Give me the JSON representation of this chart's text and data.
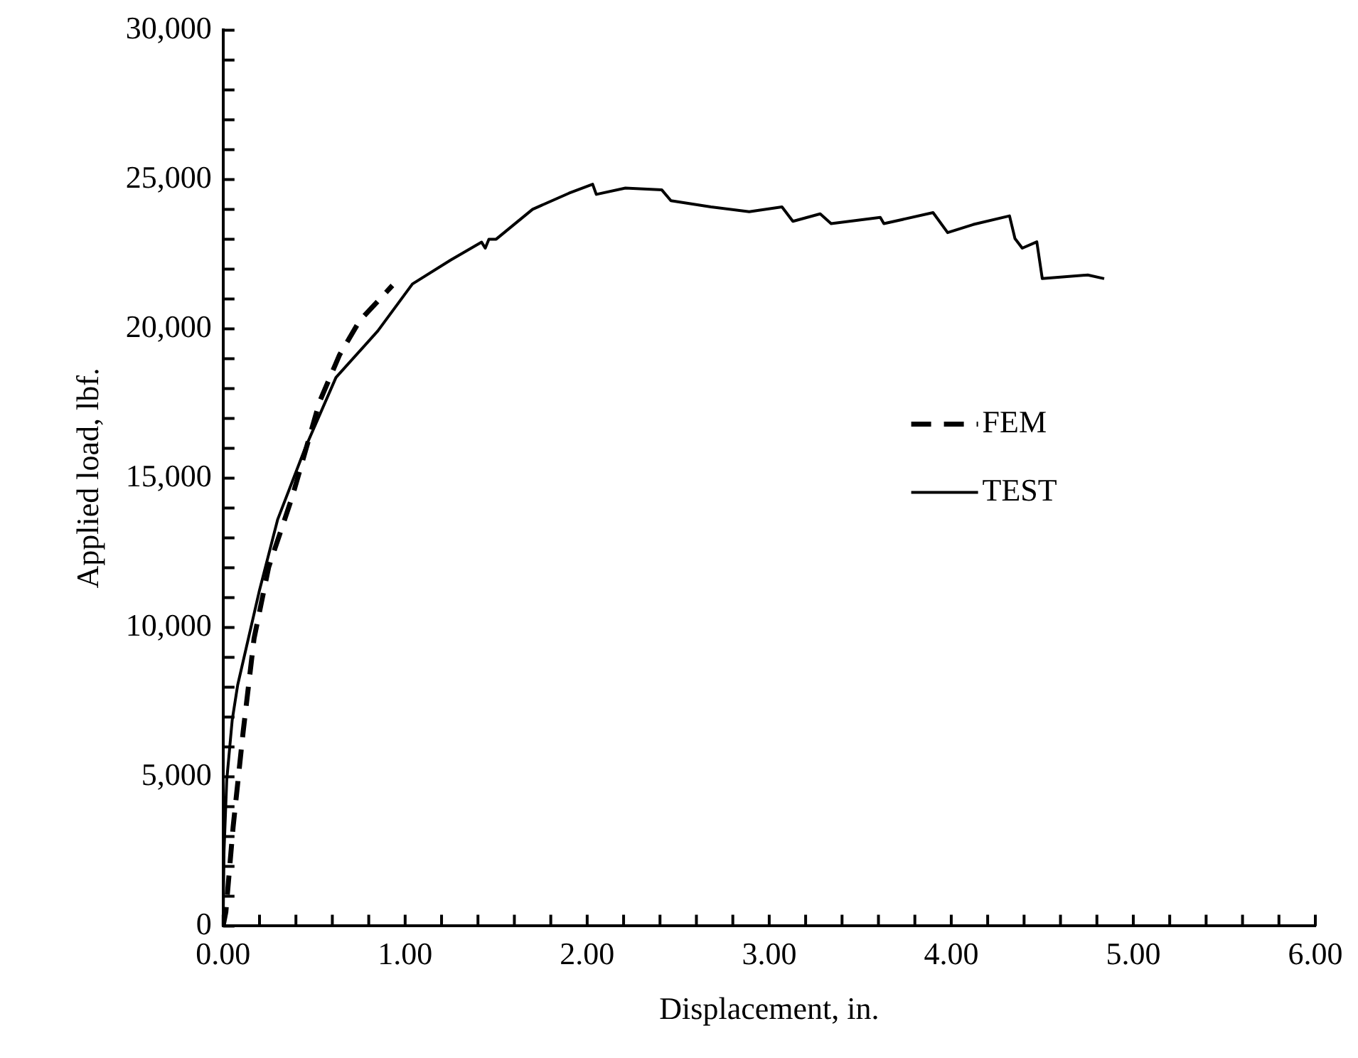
{
  "chart_data": {
    "type": "line",
    "xlabel": "Displacement, in.",
    "ylabel": "Applied load, lbf.",
    "xlim": [
      0,
      6
    ],
    "ylim": [
      0,
      30000
    ],
    "xticks": [
      {
        "value": 0,
        "label": "0.00"
      },
      {
        "value": 0.2,
        "label": null
      },
      {
        "value": 0.4,
        "label": null
      },
      {
        "value": 0.6,
        "label": null
      },
      {
        "value": 0.8,
        "label": null
      },
      {
        "value": 1,
        "label": "1.00"
      },
      {
        "value": 1.2,
        "label": null
      },
      {
        "value": 1.4,
        "label": null
      },
      {
        "value": 1.6,
        "label": null
      },
      {
        "value": 1.8,
        "label": null
      },
      {
        "value": 2,
        "label": "2.00"
      },
      {
        "value": 2.2,
        "label": null
      },
      {
        "value": 2.4,
        "label": null
      },
      {
        "value": 2.6,
        "label": null
      },
      {
        "value": 2.8,
        "label": null
      },
      {
        "value": 3,
        "label": "3.00"
      },
      {
        "value": 3.2,
        "label": null
      },
      {
        "value": 3.4,
        "label": null
      },
      {
        "value": 3.6,
        "label": null
      },
      {
        "value": 3.8,
        "label": null
      },
      {
        "value": 4,
        "label": "4.00"
      },
      {
        "value": 4.2,
        "label": null
      },
      {
        "value": 4.4,
        "label": null
      },
      {
        "value": 4.6,
        "label": null
      },
      {
        "value": 4.8,
        "label": null
      },
      {
        "value": 5,
        "label": "5.00"
      },
      {
        "value": 5.2,
        "label": null
      },
      {
        "value": 5.4,
        "label": null
      },
      {
        "value": 5.6,
        "label": null
      },
      {
        "value": 5.8,
        "label": null
      },
      {
        "value": 6,
        "label": "6.00"
      }
    ],
    "yticks": [
      0,
      {
        "value": 1000,
        "label": null
      },
      {
        "value": 2000,
        "label": null
      },
      {
        "value": 3000,
        "label": null
      },
      {
        "value": 4000,
        "label": null
      },
      {
        "value": 5000,
        "label": "5,000"
      },
      {
        "value": 6000,
        "label": null
      },
      {
        "value": 7000,
        "label": null
      },
      {
        "value": 8000,
        "label": null
      },
      {
        "value": 9000,
        "label": null
      },
      {
        "value": 10000,
        "label": "10,000"
      },
      {
        "value": 11000,
        "label": null
      },
      {
        "value": 12000,
        "label": null
      },
      {
        "value": 13000,
        "label": null
      },
      {
        "value": 14000,
        "label": null
      },
      {
        "value": 15000,
        "label": "15,000"
      },
      {
        "value": 16000,
        "label": null
      },
      {
        "value": 17000,
        "label": null
      },
      {
        "value": 18000,
        "label": null
      },
      {
        "value": 19000,
        "label": null
      },
      {
        "value": 20000,
        "label": "20,000"
      },
      {
        "value": 21000,
        "label": null
      },
      {
        "value": 22000,
        "label": null
      },
      {
        "value": 23000,
        "label": null
      },
      {
        "value": 24000,
        "label": null
      },
      {
        "value": 25000,
        "label": "25,000"
      },
      {
        "value": 26000,
        "label": null
      },
      {
        "value": 27000,
        "label": null
      },
      {
        "value": 28000,
        "label": null
      },
      {
        "value": 29000,
        "label": null
      },
      {
        "value": 30000,
        "label": "30,000"
      }
    ],
    "grid": false,
    "legend": "right",
    "marker": "none",
    "series": [
      {
        "name": "FEM",
        "color": "#000000",
        "line_style": "dashed",
        "x": [
          0,
          0.015,
          0.055,
          0.11,
          0.17,
          0.25,
          0.38,
          0.53,
          0.64,
          0.75,
          0.93
        ],
        "values": [
          0,
          470,
          3320,
          6500,
          9630,
          12010,
          14380,
          17560,
          19130,
          20270,
          21450
        ]
      },
      {
        "name": "TEST",
        "color": "#000000",
        "line_style": "solid",
        "x": [
          0,
          0.005,
          0.02,
          0.05,
          0.08,
          0.2,
          0.3,
          0.45,
          0.62,
          0.85,
          1.04,
          1.25,
          1.42,
          1.44,
          1.46,
          1.5,
          1.7,
          1.9,
          2.03,
          2.05,
          2.21,
          2.41,
          2.46,
          2.68,
          2.89,
          3.07,
          3.13,
          3.28,
          3.34,
          3.61,
          3.63,
          3.9,
          3.98,
          4.12,
          4.32,
          4.35,
          4.39,
          4.47,
          4.5,
          4.75,
          4.84
        ],
        "values": [
          0,
          2500,
          4890,
          6900,
          8070,
          11250,
          13620,
          15990,
          18370,
          19930,
          21500,
          22300,
          22900,
          22700,
          23000,
          23000,
          24000,
          24540,
          24840,
          24500,
          24710,
          24650,
          24290,
          24080,
          23920,
          24080,
          23600,
          23850,
          23520,
          23730,
          23520,
          23890,
          23220,
          23490,
          23780,
          23020,
          22700,
          22910,
          21680,
          21800,
          21680
        ]
      }
    ]
  }
}
